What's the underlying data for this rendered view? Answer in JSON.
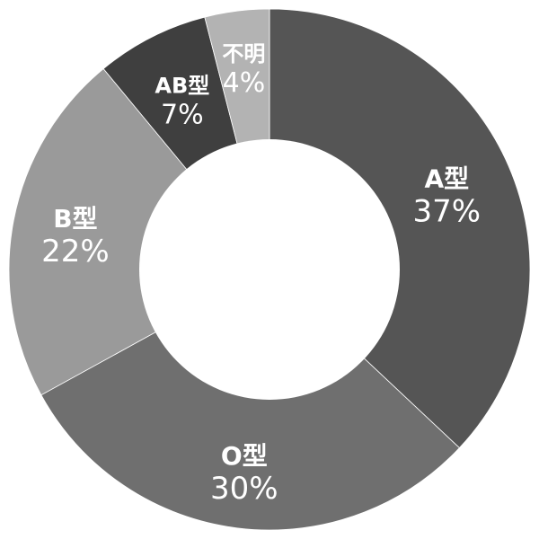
{
  "chart_data": {
    "type": "pie",
    "donut": true,
    "title": "",
    "categories": [
      "A型",
      "O型",
      "B型",
      "AB型",
      "不明"
    ],
    "values": [
      37,
      30,
      22,
      7,
      4
    ],
    "value_labels": [
      "37%",
      "30%",
      "22%",
      "7%",
      "4%"
    ],
    "start": "12 o'clock",
    "direction": "clockwise",
    "legend": "none",
    "colors": [
      "#555555",
      "#6f6f6f",
      "#9a9a9a",
      "#3f3f3f",
      "#b3b3b3"
    ],
    "label_color": "#ffffff"
  }
}
